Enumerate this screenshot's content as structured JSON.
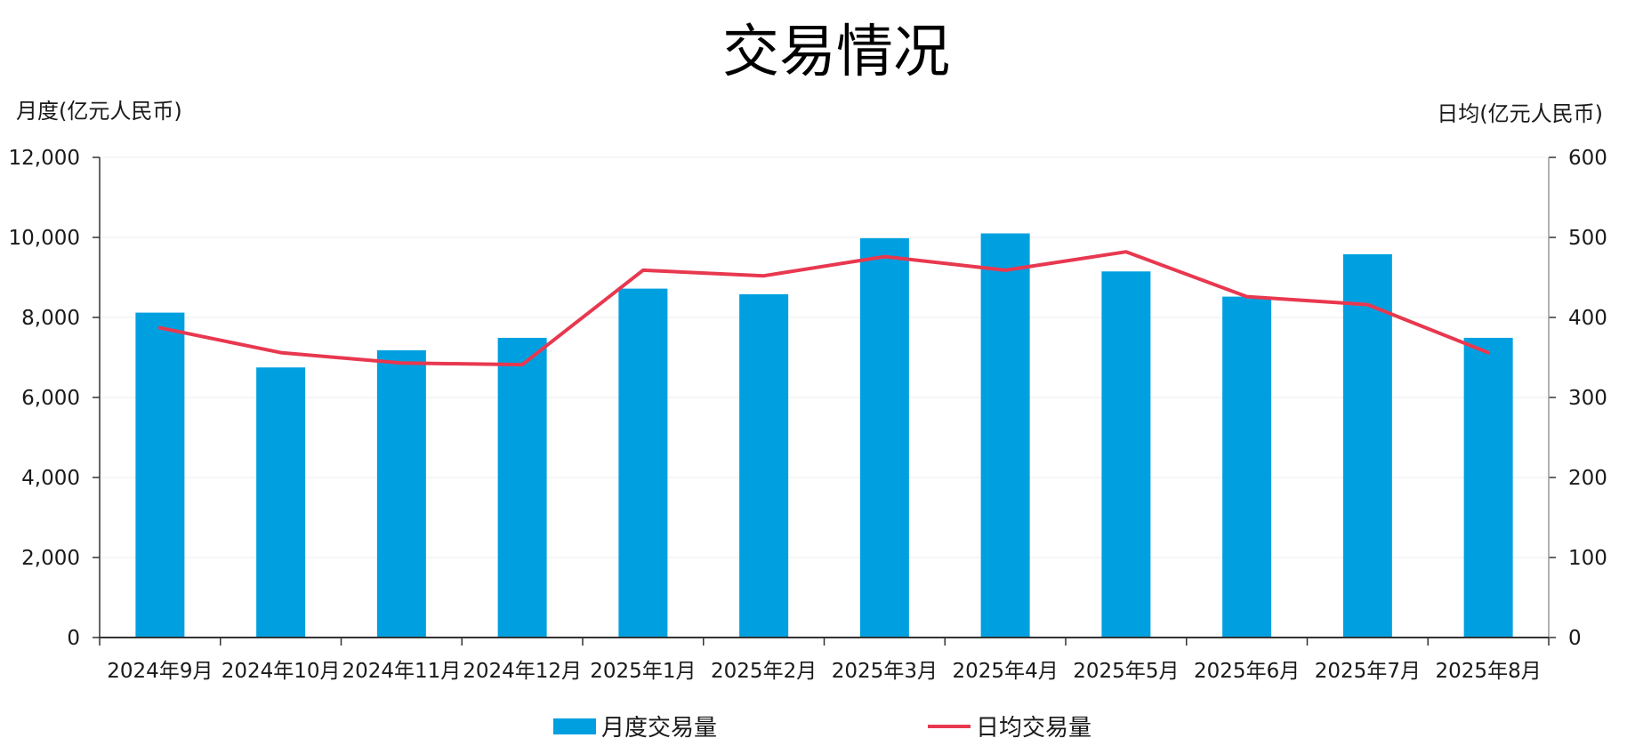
{
  "chart_data": {
    "type": "bar",
    "title": "交易情况",
    "left_axis_label": "月度(亿元人民币)",
    "right_axis_label": "日均(亿元人民币)",
    "categories": [
      "2024年9月",
      "2024年10月",
      "2024年11月",
      "2024年12月",
      "2025年1月",
      "2025年2月",
      "2025年3月",
      "2025年4月",
      "2025年5月",
      "2025年6月",
      "2025年7月",
      "2025年8月"
    ],
    "ylim_left": [
      0,
      12000
    ],
    "yticks_left": [
      "0",
      "2,000",
      "4,000",
      "6,000",
      "8,000",
      "10,000",
      "12,000"
    ],
    "ylim_right": [
      0,
      600
    ],
    "yticks_right": [
      "0",
      "100",
      "200",
      "300",
      "400",
      "500",
      "600"
    ],
    "grid": true,
    "legend_position": "bottom",
    "series": [
      {
        "name": "月度交易量",
        "type": "bar",
        "axis": "left",
        "color": "#00A0E0",
        "values": [
          8120,
          6750,
          7180,
          7490,
          8720,
          8580,
          9980,
          10100,
          9150,
          8520,
          9580,
          7490
        ]
      },
      {
        "name": "日均交易量",
        "type": "line",
        "axis": "right",
        "color": "#E8384F",
        "values": [
          387,
          356,
          343,
          341,
          459,
          452,
          476,
          459,
          482,
          426,
          416,
          356
        ]
      }
    ]
  }
}
